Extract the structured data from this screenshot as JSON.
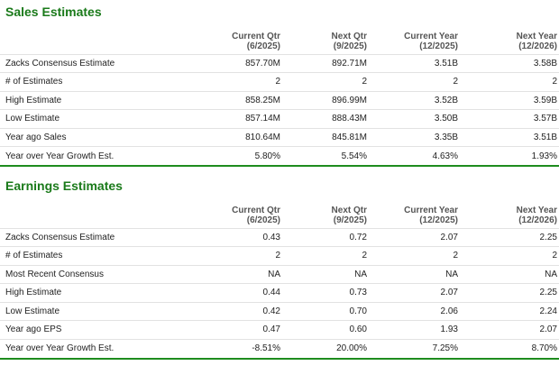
{
  "sales": {
    "title": "Sales Estimates",
    "columns": [
      {
        "line1": "Current Qtr",
        "line2": "(6/2025)"
      },
      {
        "line1": "Next Qtr",
        "line2": "(9/2025)"
      },
      {
        "line1": "Current Year",
        "line2": "(12/2025)"
      },
      {
        "line1": "Next Year",
        "line2": "(12/2026)"
      }
    ],
    "rows": [
      {
        "label": "Zacks Consensus Estimate",
        "values": [
          "857.70M",
          "892.71M",
          "3.51B",
          "3.58B"
        ]
      },
      {
        "label": "# of Estimates",
        "values": [
          "2",
          "2",
          "2",
          "2"
        ]
      },
      {
        "label": "High Estimate",
        "values": [
          "858.25M",
          "896.99M",
          "3.52B",
          "3.59B"
        ]
      },
      {
        "label": "Low Estimate",
        "values": [
          "857.14M",
          "888.43M",
          "3.50B",
          "3.57B"
        ]
      },
      {
        "label": "Year ago Sales",
        "values": [
          "810.64M",
          "845.81M",
          "3.35B",
          "3.51B"
        ]
      },
      {
        "label": "Year over Year Growth Est.",
        "values": [
          "5.80%",
          "5.54%",
          "4.63%",
          "1.93%"
        ]
      }
    ]
  },
  "earnings": {
    "title": "Earnings Estimates",
    "columns": [
      {
        "line1": "Current Qtr",
        "line2": "(6/2025)"
      },
      {
        "line1": "Next Qtr",
        "line2": "(9/2025)"
      },
      {
        "line1": "Current Year",
        "line2": "(12/2025)"
      },
      {
        "line1": "Next Year",
        "line2": "(12/2026)"
      }
    ],
    "rows": [
      {
        "label": "Zacks Consensus Estimate",
        "values": [
          "0.43",
          "0.72",
          "2.07",
          "2.25"
        ]
      },
      {
        "label": "# of Estimates",
        "values": [
          "2",
          "2",
          "2",
          "2"
        ]
      },
      {
        "label": "Most Recent Consensus",
        "values": [
          "NA",
          "NA",
          "NA",
          "NA"
        ]
      },
      {
        "label": "High Estimate",
        "values": [
          "0.44",
          "0.73",
          "2.07",
          "2.25"
        ]
      },
      {
        "label": "Low Estimate",
        "values": [
          "0.42",
          "0.70",
          "2.06",
          "2.24"
        ]
      },
      {
        "label": "Year ago EPS",
        "values": [
          "0.47",
          "0.60",
          "1.93",
          "2.07"
        ]
      },
      {
        "label": "Year over Year Growth Est.",
        "values": [
          "-8.51%",
          "20.00%",
          "7.25%",
          "8.70%"
        ]
      }
    ]
  },
  "colors": {
    "title_green": "#1a7a1a",
    "separator_green": "#1e8c1e",
    "row_border": "#e2e2e2"
  }
}
